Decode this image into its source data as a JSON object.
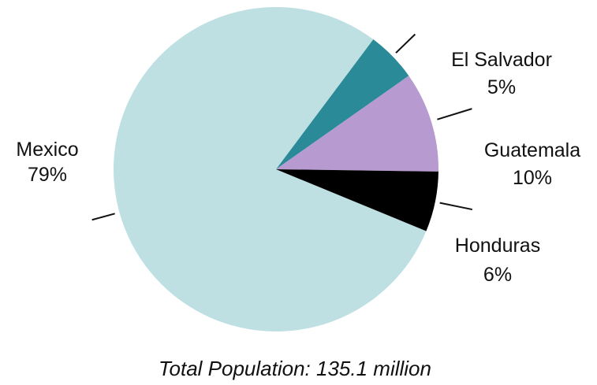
{
  "chart_data": {
    "type": "pie",
    "categories": [
      "Mexico",
      "El Salvador",
      "Guatemala",
      "Honduras"
    ],
    "values": [
      79,
      5,
      10,
      6
    ],
    "value_labels": [
      "79%",
      "5%",
      "10%",
      "6%"
    ],
    "colors": [
      "#bfe0e3",
      "#2a8a98",
      "#b79bd0",
      "#000000"
    ],
    "footer": "Total Population: 135.1 million",
    "title": "",
    "legend": "none"
  }
}
